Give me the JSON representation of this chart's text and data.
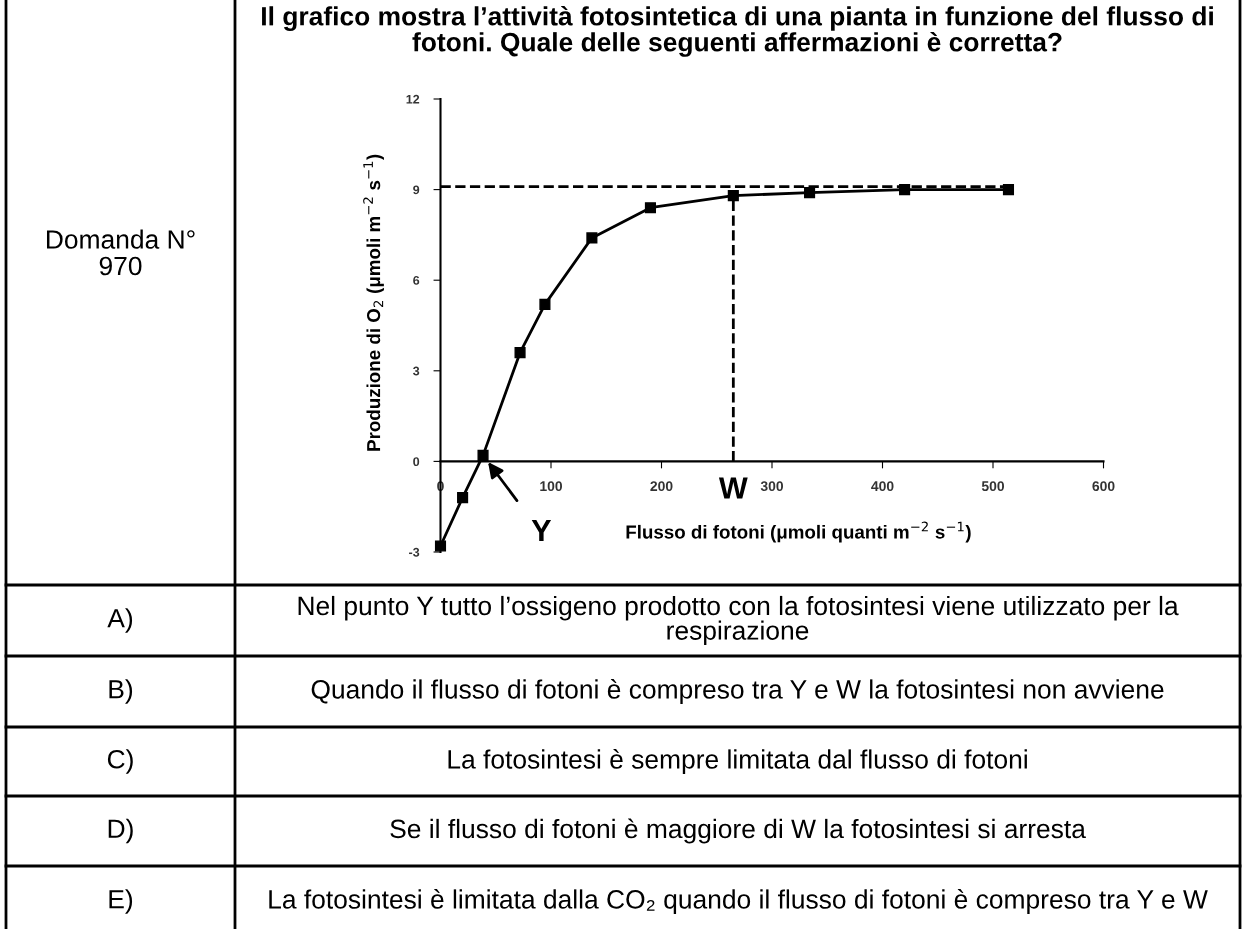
{
  "chart_data": {
    "type": "line",
    "title": "Il grafico mostra l’attività fotosintetica di una pianta in funzione del flusso di fotoni. Quale delle seguenti affermazioni è corretta?",
    "xlabel": "Flusso di fotoni (μmoli quanti m$^{−2}$ s$^{−1}$)",
    "ylabel": "Produzione di O$_{2}$ (μmoli m$^{−2}$ s$^{−1}$)",
    "x": [
      0,
      20,
      38.5,
      72,
      94.5,
      137,
      190,
      265,
      334,
      420,
      514
    ],
    "series": [
      {
        "color": "#000000",
        "values": [
          -2.8,
          -1.2,
          0.2,
          3.6,
          5.2,
          7.4,
          8.4,
          8.8,
          8.9,
          9.0,
          9.0
        ]
      }
    ],
    "marker": "square",
    "line_style": "solid",
    "grid": false,
    "legend": false,
    "xlim": [
      0,
      600
    ],
    "xticks": [
      0,
      100,
      200,
      300,
      400,
      500,
      600
    ],
    "ylim": [
      -3,
      12
    ],
    "yticks": [
      -3,
      0,
      3,
      6,
      9,
      12
    ],
    "ref_lines": [
      {
        "axis": "y",
        "value": 9.1,
        "label": null,
        "line_style": "dashed",
        "color": "#000000"
      },
      {
        "axis": "x",
        "value": 265,
        "label": "W",
        "line_style": "dashed",
        "color": "#000000"
      }
    ],
    "annotations": [
      {
        "text": "Y",
        "x": 38.5,
        "y": 0.2
      },
      "Domanda N° 970",
      "A)",
      "Nel punto Y tutto l’ossigeno prodotto con la fotosintesi viene utilizzato per la respirazione",
      "B)",
      "Quando il flusso di fotoni è compreso tra Y e W la fotosintesi non avviene",
      "C)",
      "La fotosintesi è sempre limitata dal flusso di fotoni",
      "D)",
      "Se il flusso di fotoni è maggiore di W la fotosintesi si arresta",
      "E)",
      "La fotosintesi è limitata dalla CO₂ quando il flusso di fotoni è compreso tra Y e W"
    ]
  }
}
